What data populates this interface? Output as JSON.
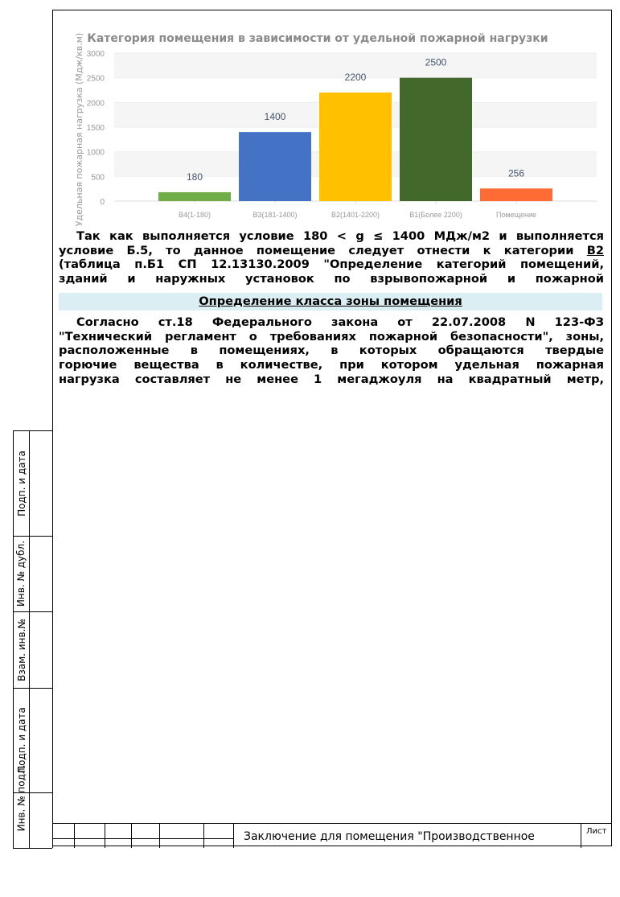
{
  "chart_data": {
    "type": "bar",
    "title": "Категория помещения в зависимости от удельной пожарной нагрузки",
    "ylabel": "Удельная пожарная нагрузка (Мдж/кв.м)",
    "xlabel": "",
    "categories": [
      "В4(1-180)",
      "В3(181-1400)",
      "В2(1401-2200)",
      "В1(Более 2200)",
      "Помещение"
    ],
    "values": [
      180,
      1400,
      2200,
      2500,
      256
    ],
    "colors": [
      "#70ad47",
      "#4472c4",
      "#ffc000",
      "#43682b",
      "#ff6b35"
    ],
    "ylim": [
      0,
      3000
    ],
    "yticks": [
      0,
      500,
      1000,
      1500,
      2000,
      2500,
      3000
    ],
    "grid": true,
    "data_labels": true
  },
  "paragraph1": {
    "lines": [
      "Так как выполняется условие 180 < g ≤ 1400 МДж/м2 и выполняется",
      "условие Б.5, то данное помещение следует отнести к категории ",
      "(таблица п.Б1 СП 12.13130.2009 \"Определение категорий помещений,",
      "зданий и наружных установок по взрывопожарной и пожарной"
    ],
    "category": "В2"
  },
  "section_heading": "Определение класса зоны помещения",
  "paragraph2": {
    "lines": [
      "Согласно ст.18 Федерального закона от 22.07.2008 N 123-ФЗ",
      "\"Технический регламент о требованиях пожарной безопасности\", зоны,",
      "расположенные в помещениях, в которых обращаются твердые",
      "горючие вещества в количестве, при котором удельная пожарная",
      "нагрузка составляет не менее 1 мегаджоуля на квадратный метр,"
    ]
  },
  "side_labels": [
    "Подп. и дата",
    "Инв. № дубл.",
    "Взам. инв.№",
    "Подп. и дата",
    "Инв. № подл."
  ],
  "stamp": {
    "title": "Заключение для помещения \"Производственное",
    "sheet_label": "Лист"
  }
}
